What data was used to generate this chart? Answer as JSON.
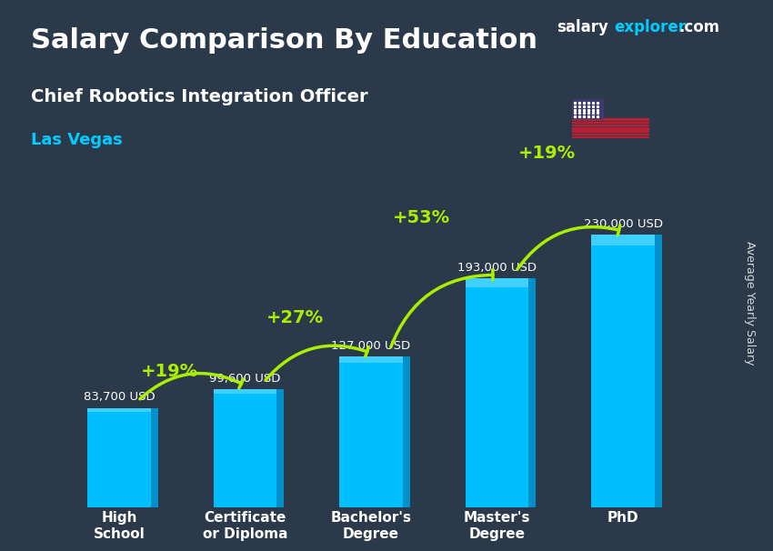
{
  "title_main": "Salary Comparison By Education",
  "title_sub": "Chief Robotics Integration Officer",
  "title_city": "Las Vegas",
  "ylabel": "Average Yearly Salary",
  "categories": [
    "High\nSchool",
    "Certificate\nor Diploma",
    "Bachelor's\nDegree",
    "Master's\nDegree",
    "PhD"
  ],
  "values": [
    83700,
    99600,
    127000,
    193000,
    230000
  ],
  "value_labels": [
    "83,700 USD",
    "99,600 USD",
    "127,000 USD",
    "193,000 USD",
    "230,000 USD"
  ],
  "pct_labels": [
    "+19%",
    "+27%",
    "+53%",
    "+19%"
  ],
  "bar_color": "#00BFFF",
  "bar_color_top": "#40D0FF",
  "bar_color_dark": "#0090CC",
  "pct_color": "#AAEE00",
  "title_color": "#FFFFFF",
  "subtitle_color": "#FFFFFF",
  "city_color": "#00CCFF",
  "value_label_color": "#FFFFFF",
  "brand_salary": "salary",
  "brand_explorer": "explorer",
  "brand_com": ".com",
  "background_color": "#2a3a4a",
  "ylim": [
    0,
    270000
  ],
  "bar_width": 0.5
}
